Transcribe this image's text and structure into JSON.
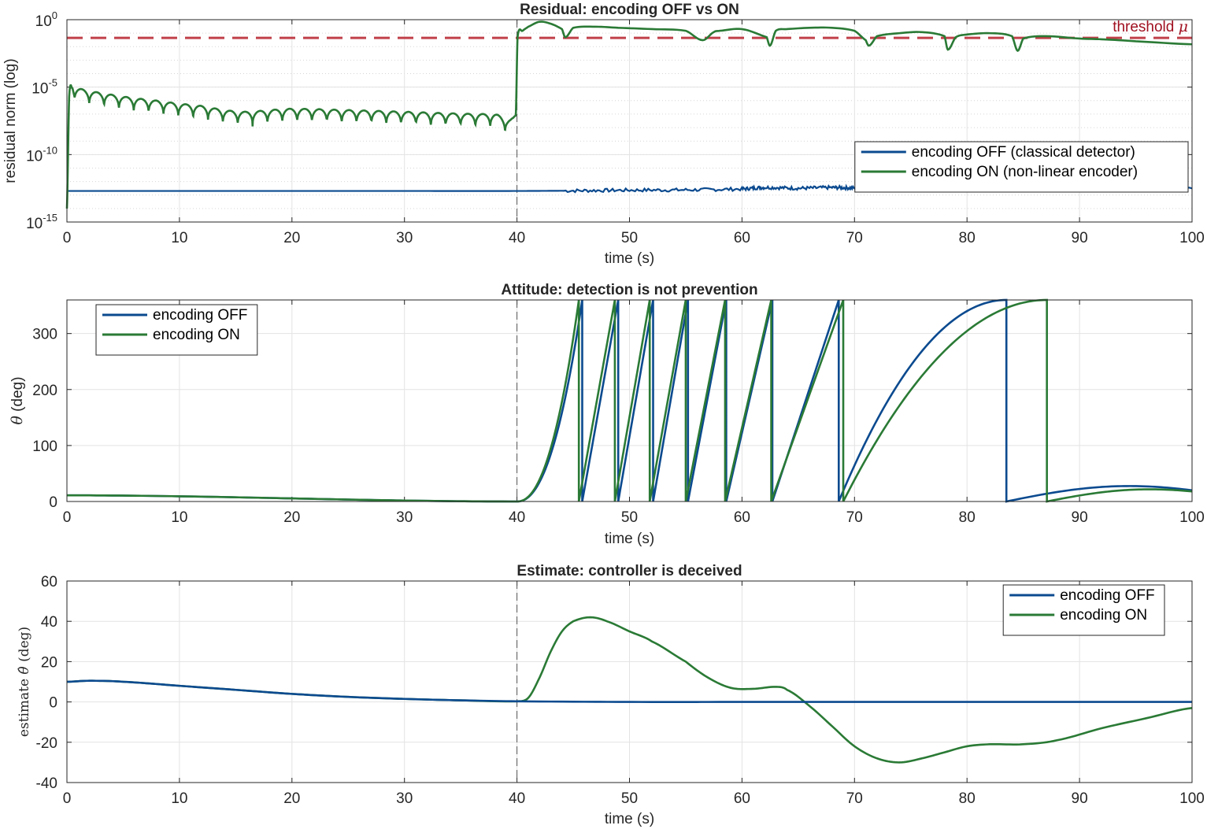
{
  "colors": {
    "encoding_off": "#0b4a8f",
    "encoding_on": "#2a7a35",
    "threshold": "#c0404a",
    "threshold_text": "#a01020",
    "grid": "#e3e3e3",
    "axis": "#262626"
  },
  "chart_data": [
    {
      "type": "line",
      "title": "Residual: encoding OFF vs ON",
      "xlabel": "time (s)",
      "ylabel": "residual norm (log)",
      "yscale": "log",
      "xlim": [
        0,
        100
      ],
      "ylim_exp": [
        -15,
        0
      ],
      "xticks": [
        "0",
        "10",
        "20",
        "30",
        "40",
        "50",
        "60",
        "70",
        "80",
        "90",
        "100"
      ],
      "yticks": [
        {
          "base": "10",
          "exp": "0"
        },
        {
          "base": "10",
          "exp": "-5"
        },
        {
          "base": "10",
          "exp": "-10"
        },
        {
          "base": "10",
          "exp": "-15"
        }
      ],
      "grid": true,
      "legend_position": "right",
      "attack_time": 40,
      "threshold": {
        "label": "threshold ",
        "symbol": "μ",
        "value": 0.045
      },
      "series": [
        {
          "name": "encoding OFF (classical detector)",
          "color_key": "encoding_off",
          "x": [
            0,
            10,
            20,
            30,
            40,
            45,
            50,
            55,
            60,
            62,
            65,
            68,
            70,
            75,
            80,
            85,
            90,
            95,
            100
          ],
          "y": [
            2e-13,
            2e-13,
            2e-13,
            2e-13,
            2e-13,
            2.1e-13,
            2.3e-13,
            2.4e-13,
            2.8e-13,
            3.6e-13,
            3.2e-13,
            3.6e-13,
            3.3e-13,
            3.2e-13,
            3.4e-13,
            3.3e-13,
            3.3e-13,
            3.4e-13,
            3.6e-13
          ]
        },
        {
          "name": "encoding ON (non-linear encoder)",
          "color_key": "encoding_on",
          "x": [
            0,
            0.2,
            0.5,
            2,
            5,
            8,
            10,
            12,
            14,
            16,
            18,
            20,
            25,
            30,
            35,
            38,
            39.9,
            40.05,
            40.5,
            41,
            42,
            43,
            44,
            44.3,
            45,
            47,
            49,
            52,
            55,
            56.5,
            57.5,
            58,
            60,
            62.2,
            62.5,
            63,
            64,
            66,
            68,
            70,
            71,
            71.3,
            72,
            74,
            76,
            78,
            78.3,
            79,
            80,
            82,
            84,
            84.5,
            85,
            87,
            90,
            92,
            95,
            100
          ],
          "y": [
            1e-14,
            2e-06,
            8e-06,
            5e-06,
            2e-06,
            1e-06,
            6e-07,
            4e-07,
            2e-07,
            1.5e-07,
            2e-07,
            2.5e-07,
            2e-07,
            1.5e-07,
            1.1e-07,
            1e-07,
            1e-07,
            0.05,
            0.15,
            0.3,
            0.7,
            0.5,
            0.2,
            0.05,
            0.25,
            0.3,
            0.25,
            0.2,
            0.15,
            0.03,
            0.12,
            0.15,
            0.2,
            0.05,
            0.012,
            0.15,
            0.2,
            0.25,
            0.25,
            0.15,
            0.03,
            0.012,
            0.06,
            0.1,
            0.12,
            0.06,
            0.006,
            0.05,
            0.08,
            0.1,
            0.06,
            0.005,
            0.04,
            0.06,
            0.04,
            0.035,
            0.025,
            0.015
          ]
        }
      ]
    },
    {
      "type": "line",
      "title": "Attitude: detection is not prevention",
      "xlabel": "time (s)",
      "ylabel_symbol": "θ",
      "ylabel_unit": " (deg)",
      "xlim": [
        0,
        100
      ],
      "ylim": [
        0,
        360
      ],
      "xticks": [
        "0",
        "10",
        "20",
        "30",
        "40",
        "50",
        "60",
        "70",
        "80",
        "90",
        "100"
      ],
      "yticks": [
        "0",
        "100",
        "200",
        "300"
      ],
      "grid": true,
      "legend_position": "top-left",
      "attack_time": 40,
      "series": [
        {
          "name": "encoding OFF",
          "color_key": "encoding_off",
          "wraps": [
            {
              "t0": 0,
              "t1": 40,
              "y0": 11,
              "y1": 0,
              "shape": "decay"
            },
            {
              "t0": 40,
              "t1": 45.8,
              "y0": 0,
              "y1": 360,
              "shape": "accel"
            },
            {
              "t0": 45.8,
              "t1": 49.0,
              "y0": 0,
              "y1": 360,
              "shape": "linear"
            },
            {
              "t0": 49.0,
              "t1": 52.1,
              "y0": 0,
              "y1": 360,
              "shape": "linear"
            },
            {
              "t0": 52.1,
              "t1": 55.2,
              "y0": 0,
              "y1": 360,
              "shape": "linear"
            },
            {
              "t0": 55.2,
              "t1": 58.6,
              "y0": 0,
              "y1": 360,
              "shape": "linear"
            },
            {
              "t0": 58.6,
              "t1": 62.7,
              "y0": 0,
              "y1": 360,
              "shape": "linear"
            },
            {
              "t0": 62.7,
              "t1": 68.6,
              "y0": 0,
              "y1": 360,
              "shape": "linear"
            },
            {
              "t0": 68.6,
              "t1": 83.5,
              "y0": 0,
              "y1": 360,
              "shape": "decel"
            },
            {
              "t0": 83.5,
              "t1": 100,
              "y0": 0,
              "y1": 20,
              "shape": "hump",
              "peak": 28
            }
          ]
        },
        {
          "name": "encoding ON",
          "color_key": "encoding_on",
          "wraps": [
            {
              "t0": 0,
              "t1": 40,
              "y0": 11,
              "y1": 0,
              "shape": "decay"
            },
            {
              "t0": 40,
              "t1": 45.5,
              "y0": 0,
              "y1": 360,
              "shape": "accel"
            },
            {
              "t0": 45.5,
              "t1": 48.7,
              "y0": 0,
              "y1": 360,
              "shape": "linear"
            },
            {
              "t0": 48.7,
              "t1": 51.8,
              "y0": 0,
              "y1": 360,
              "shape": "linear"
            },
            {
              "t0": 51.8,
              "t1": 55.0,
              "y0": 0,
              "y1": 360,
              "shape": "linear"
            },
            {
              "t0": 55.0,
              "t1": 58.5,
              "y0": 0,
              "y1": 360,
              "shape": "linear"
            },
            {
              "t0": 58.5,
              "t1": 62.6,
              "y0": 0,
              "y1": 360,
              "shape": "linear"
            },
            {
              "t0": 62.6,
              "t1": 69.0,
              "y0": 0,
              "y1": 360,
              "shape": "linear"
            },
            {
              "t0": 69.0,
              "t1": 87.1,
              "y0": 0,
              "y1": 360,
              "shape": "decel"
            },
            {
              "t0": 87.1,
              "t1": 100,
              "y0": 0,
              "y1": 18,
              "shape": "hump",
              "peak": 19
            }
          ]
        }
      ]
    },
    {
      "type": "line",
      "title": "Estimate: controller is deceived",
      "xlabel": "time (s)",
      "ylabel_prefix": "estimate ",
      "ylabel_symbol": "θ̂",
      "ylabel_unit": " (deg)",
      "xlim": [
        0,
        100
      ],
      "ylim": [
        -40,
        60
      ],
      "xticks": [
        "0",
        "10",
        "20",
        "30",
        "40",
        "50",
        "60",
        "70",
        "80",
        "90",
        "100"
      ],
      "yticks": [
        "-40",
        "-20",
        "0",
        "20",
        "40",
        "60"
      ],
      "grid": true,
      "legend_position": "top-right",
      "attack_time": 40,
      "series": [
        {
          "name": "encoding OFF",
          "color_key": "encoding_off",
          "x": [
            0,
            2,
            5,
            10,
            15,
            20,
            25,
            30,
            35,
            40,
            50,
            60,
            70,
            80,
            90,
            100
          ],
          "y": [
            10,
            10.5,
            10,
            8,
            6,
            4,
            2.5,
            1.5,
            0.8,
            0.3,
            0,
            0,
            0,
            0,
            0,
            0
          ]
        },
        {
          "name": "encoding ON",
          "color_key": "encoding_on",
          "x": [
            0,
            2,
            5,
            10,
            15,
            20,
            25,
            30,
            35,
            40,
            41,
            42,
            43,
            44,
            45,
            46.5,
            48,
            50,
            52,
            55,
            57,
            59,
            61,
            63,
            64,
            66,
            68,
            70,
            72,
            74,
            76,
            78,
            80,
            82,
            85,
            88,
            92,
            96,
            100
          ],
          "y": [
            10,
            10.5,
            10,
            8,
            6,
            4,
            2.5,
            1.5,
            0.8,
            0.3,
            2,
            12,
            25,
            35,
            40,
            42,
            40,
            35,
            30,
            20,
            12,
            7,
            6.5,
            7.5,
            6,
            -2,
            -12,
            -22,
            -28,
            -30,
            -28,
            -25,
            -22,
            -21,
            -21,
            -19,
            -13,
            -8,
            -3
          ]
        }
      ]
    }
  ]
}
